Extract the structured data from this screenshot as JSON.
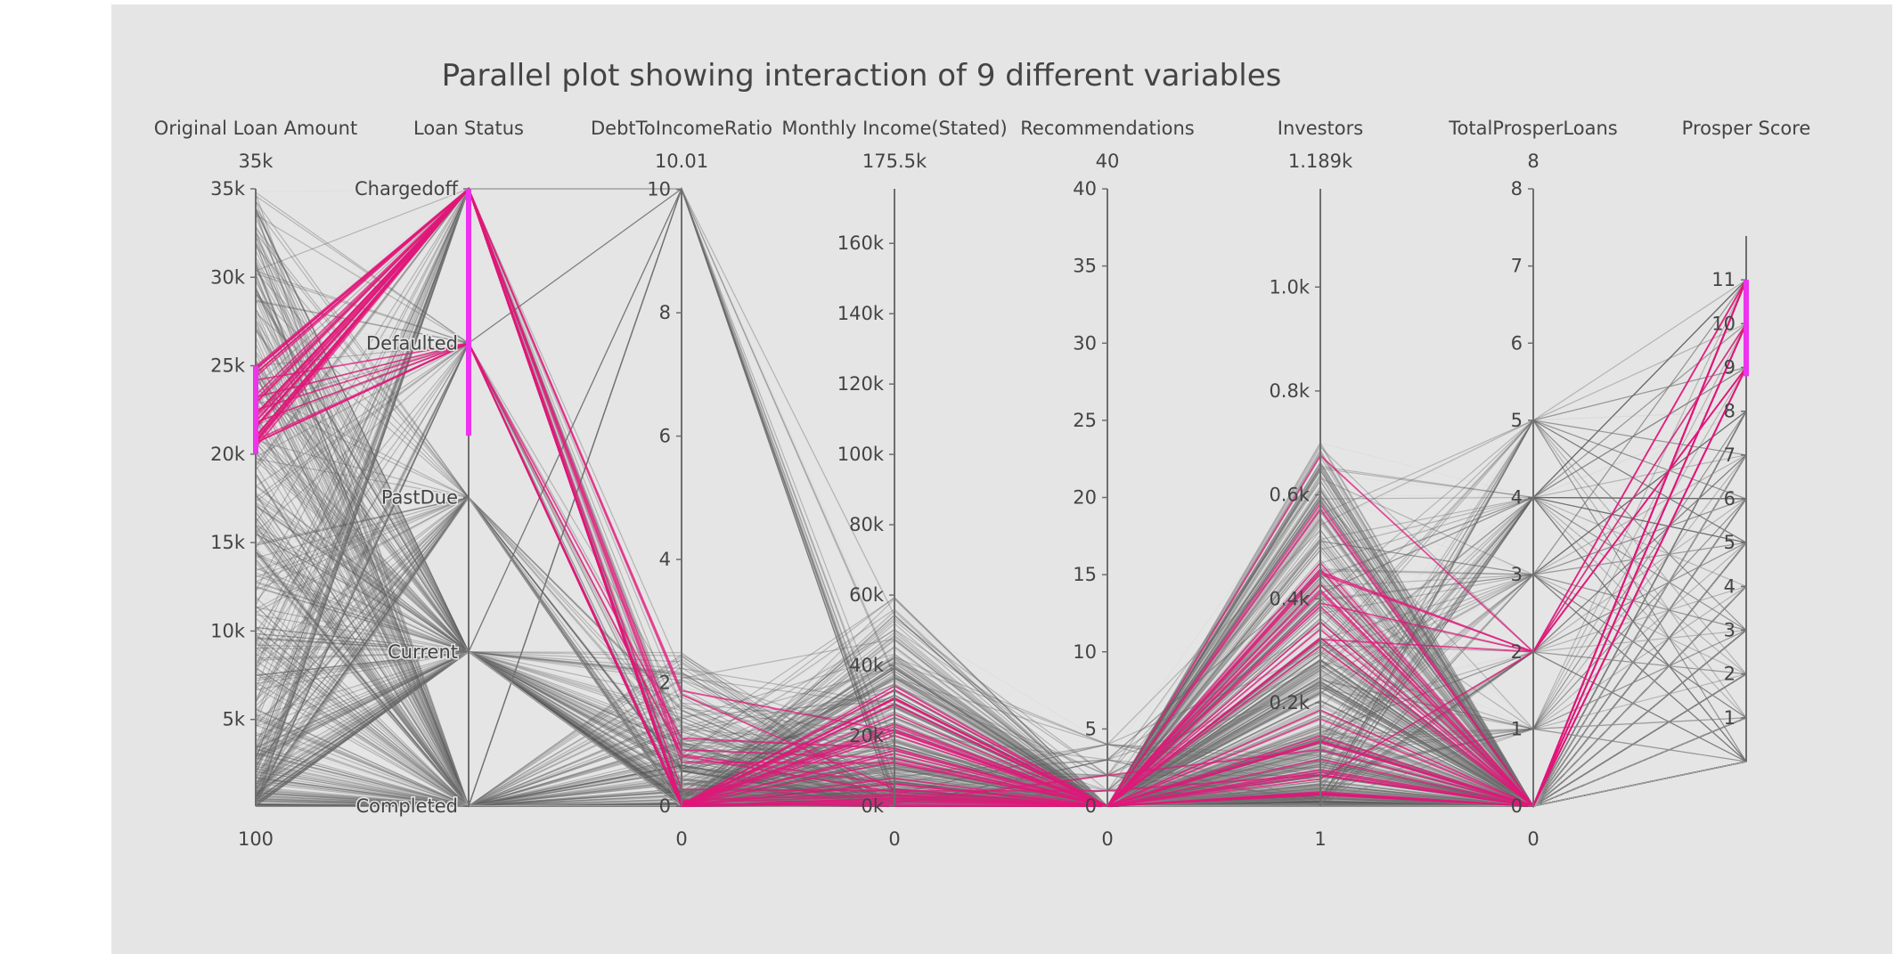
{
  "chart_data": {
    "type": "parallel_coordinates",
    "title": "Parallel plot showing interaction of 9 different variables",
    "colors": {
      "background": "#e5e5e5",
      "context_lines": "#5a5a5a",
      "highlight_lines": "#e0177a",
      "brush": "#ee33ee",
      "axis": "#6e6e6e",
      "text": "#444444"
    },
    "dimensions": [
      {
        "key": "loan_amount",
        "label": "Original Loan Amount",
        "range": [
          100,
          35000
        ],
        "range_top_label": "35k",
        "range_bottom_label": "100",
        "ticks": [
          {
            "v": 5000,
            "t": "5k"
          },
          {
            "v": 10000,
            "t": "10k"
          },
          {
            "v": 15000,
            "t": "15k"
          },
          {
            "v": 20000,
            "t": "20k"
          },
          {
            "v": 25000,
            "t": "25k"
          },
          {
            "v": 30000,
            "t": "30k"
          },
          {
            "v": 35000,
            "t": "35k"
          }
        ],
        "brush": [
          20000,
          25000
        ]
      },
      {
        "key": "loan_status",
        "label": "Loan Status",
        "categorical": true,
        "range": [
          0,
          4
        ],
        "categories": [
          {
            "v": 0,
            "t": "Completed"
          },
          {
            "v": 1,
            "t": "Current"
          },
          {
            "v": 2,
            "t": "PastDue"
          },
          {
            "v": 3,
            "t": "Defaulted"
          },
          {
            "v": 4,
            "t": "Chargedoff"
          }
        ],
        "brush": [
          2.4,
          4
        ]
      },
      {
        "key": "dti",
        "label": "DebtToIncomeRatio",
        "range": [
          0,
          10.01
        ],
        "range_top_label": "10.01",
        "range_bottom_label": "0",
        "ticks": [
          {
            "v": 0,
            "t": "0"
          },
          {
            "v": 2,
            "t": "2"
          },
          {
            "v": 4,
            "t": "4"
          },
          {
            "v": 6,
            "t": "6"
          },
          {
            "v": 8,
            "t": "8"
          },
          {
            "v": 10,
            "t": "10"
          }
        ]
      },
      {
        "key": "monthly_income",
        "label": "Monthly Income(Stated)",
        "range": [
          0,
          175500
        ],
        "range_top_label": "175.5k",
        "range_bottom_label": "0",
        "ticks": [
          {
            "v": 0,
            "t": "0k"
          },
          {
            "v": 20000,
            "t": "20k"
          },
          {
            "v": 40000,
            "t": "40k"
          },
          {
            "v": 60000,
            "t": "60k"
          },
          {
            "v": 80000,
            "t": "80k"
          },
          {
            "v": 100000,
            "t": "100k"
          },
          {
            "v": 120000,
            "t": "120k"
          },
          {
            "v": 140000,
            "t": "140k"
          },
          {
            "v": 160000,
            "t": "160k"
          }
        ]
      },
      {
        "key": "recommendations",
        "label": "Recommendations",
        "range": [
          0,
          40
        ],
        "range_top_label": "40",
        "range_bottom_label": "0",
        "ticks": [
          {
            "v": 0,
            "t": "0"
          },
          {
            "v": 5,
            "t": "5"
          },
          {
            "v": 10,
            "t": "10"
          },
          {
            "v": 15,
            "t": "15"
          },
          {
            "v": 20,
            "t": "20"
          },
          {
            "v": 25,
            "t": "25"
          },
          {
            "v": 30,
            "t": "30"
          },
          {
            "v": 35,
            "t": "35"
          },
          {
            "v": 40,
            "t": "40"
          }
        ]
      },
      {
        "key": "investors",
        "label": "Investors",
        "range": [
          1,
          1189
        ],
        "range_top_label": "1.189k",
        "range_bottom_label": "1",
        "ticks": [
          {
            "v": 200,
            "t": "0.2k"
          },
          {
            "v": 400,
            "t": "0.4k"
          },
          {
            "v": 600,
            "t": "0.6k"
          },
          {
            "v": 800,
            "t": "0.8k"
          },
          {
            "v": 1000,
            "t": "1.0k"
          }
        ]
      },
      {
        "key": "total_prosper_loans",
        "label": "TotalProsperLoans",
        "range": [
          0,
          8
        ],
        "range_top_label": "8",
        "range_bottom_label": "0",
        "ticks": [
          {
            "v": 0,
            "t": "0"
          },
          {
            "v": 1,
            "t": "1"
          },
          {
            "v": 2,
            "t": "2"
          },
          {
            "v": 3,
            "t": "3"
          },
          {
            "v": 4,
            "t": "4"
          },
          {
            "v": 5,
            "t": "5"
          },
          {
            "v": 6,
            "t": "6"
          },
          {
            "v": 7,
            "t": "7"
          },
          {
            "v": 8,
            "t": "8"
          }
        ]
      },
      {
        "key": "prosper_score",
        "label": "Prosper Score",
        "range": [
          0,
          12
        ],
        "ticks": [
          {
            "v": 1,
            "t": "1"
          },
          {
            "v": 2,
            "t": "2"
          },
          {
            "v": 3,
            "t": "3"
          },
          {
            "v": 4,
            "t": "4"
          },
          {
            "v": 5,
            "t": "5"
          },
          {
            "v": 6,
            "t": "6"
          },
          {
            "v": 7,
            "t": "7"
          },
          {
            "v": 8,
            "t": "8"
          },
          {
            "v": 9,
            "t": "9"
          },
          {
            "v": 10,
            "t": "10"
          },
          {
            "v": 11,
            "t": "11"
          }
        ],
        "brush": [
          8.8,
          11
        ]
      }
    ]
  }
}
